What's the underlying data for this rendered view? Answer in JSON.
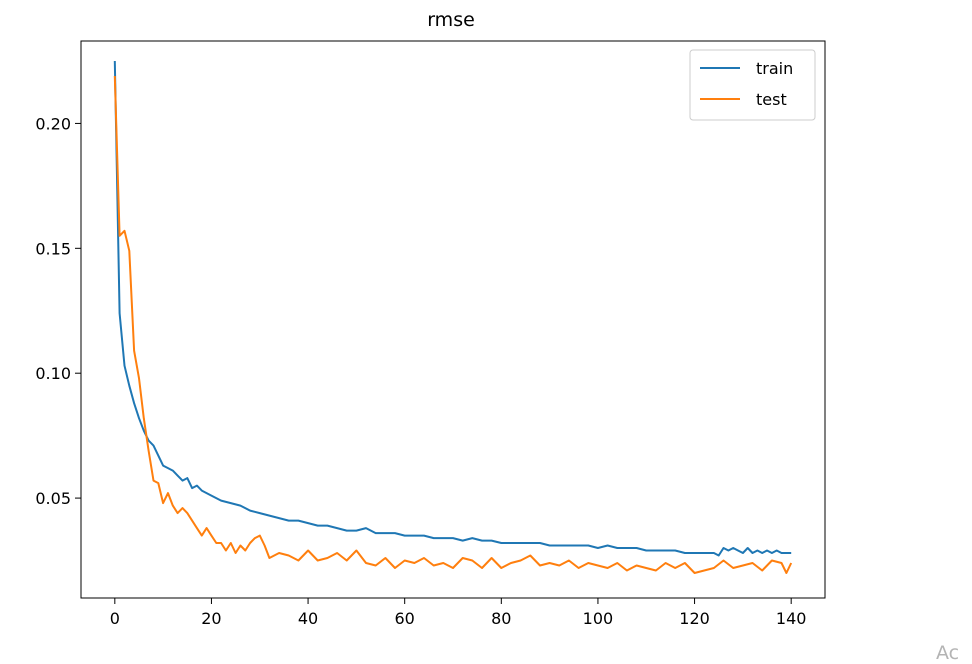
{
  "chart_data": {
    "type": "line",
    "title": "rmse",
    "xlabel": "",
    "ylabel": "",
    "xlim": [
      -7,
      147
    ],
    "ylim": [
      0.01,
      0.233
    ],
    "xticks": [
      0,
      20,
      40,
      60,
      80,
      100,
      120,
      140
    ],
    "yticks": [
      0.05,
      0.1,
      0.15,
      0.2
    ],
    "ytick_labels": [
      "0.05",
      "0.10",
      "0.15",
      "0.20"
    ],
    "legend_position": "top-right",
    "grid": false,
    "series": [
      {
        "name": "train",
        "color": "#1f77b4",
        "x": [
          0,
          1,
          2,
          3,
          4,
          5,
          6,
          7,
          8,
          9,
          10,
          11,
          12,
          13,
          14,
          15,
          16,
          17,
          18,
          19,
          20,
          22,
          24,
          26,
          28,
          30,
          32,
          34,
          36,
          38,
          40,
          42,
          44,
          46,
          48,
          50,
          52,
          54,
          56,
          58,
          60,
          62,
          64,
          66,
          68,
          70,
          72,
          74,
          76,
          78,
          80,
          82,
          84,
          86,
          88,
          90,
          92,
          94,
          96,
          98,
          100,
          102,
          104,
          106,
          108,
          110,
          112,
          114,
          116,
          118,
          120,
          122,
          124,
          125,
          126,
          127,
          128,
          129,
          130,
          131,
          132,
          133,
          134,
          135,
          136,
          137,
          138,
          139,
          140
        ],
        "y": [
          0.225,
          0.124,
          0.103,
          0.095,
          0.088,
          0.082,
          0.077,
          0.073,
          0.071,
          0.067,
          0.063,
          0.062,
          0.061,
          0.059,
          0.057,
          0.058,
          0.054,
          0.055,
          0.053,
          0.052,
          0.051,
          0.049,
          0.048,
          0.047,
          0.045,
          0.044,
          0.043,
          0.042,
          0.041,
          0.041,
          0.04,
          0.039,
          0.039,
          0.038,
          0.037,
          0.037,
          0.038,
          0.036,
          0.036,
          0.036,
          0.035,
          0.035,
          0.035,
          0.034,
          0.034,
          0.034,
          0.033,
          0.034,
          0.033,
          0.033,
          0.032,
          0.032,
          0.032,
          0.032,
          0.032,
          0.031,
          0.031,
          0.031,
          0.031,
          0.031,
          0.03,
          0.031,
          0.03,
          0.03,
          0.03,
          0.029,
          0.029,
          0.029,
          0.029,
          0.028,
          0.028,
          0.028,
          0.028,
          0.027,
          0.03,
          0.029,
          0.03,
          0.029,
          0.028,
          0.03,
          0.028,
          0.029,
          0.028,
          0.029,
          0.028,
          0.029,
          0.028,
          0.028,
          0.028
        ]
      },
      {
        "name": "test",
        "color": "#ff7f0e",
        "x": [
          0,
          1,
          2,
          3,
          4,
          5,
          6,
          7,
          8,
          9,
          10,
          11,
          12,
          13,
          14,
          15,
          16,
          17,
          18,
          19,
          20,
          21,
          22,
          23,
          24,
          25,
          26,
          27,
          28,
          29,
          30,
          31,
          32,
          34,
          36,
          38,
          40,
          42,
          44,
          46,
          48,
          50,
          52,
          54,
          56,
          58,
          60,
          62,
          64,
          66,
          68,
          70,
          72,
          74,
          76,
          78,
          80,
          82,
          84,
          86,
          88,
          90,
          92,
          94,
          96,
          98,
          100,
          102,
          104,
          106,
          108,
          110,
          112,
          114,
          116,
          118,
          120,
          122,
          124,
          126,
          128,
          130,
          132,
          134,
          136,
          138,
          139,
          140
        ],
        "y": [
          0.219,
          0.155,
          0.157,
          0.149,
          0.109,
          0.098,
          0.082,
          0.069,
          0.057,
          0.056,
          0.048,
          0.052,
          0.047,
          0.044,
          0.046,
          0.044,
          0.041,
          0.038,
          0.035,
          0.038,
          0.035,
          0.032,
          0.032,
          0.029,
          0.032,
          0.028,
          0.031,
          0.029,
          0.032,
          0.034,
          0.035,
          0.031,
          0.026,
          0.028,
          0.027,
          0.025,
          0.029,
          0.025,
          0.026,
          0.028,
          0.025,
          0.029,
          0.024,
          0.023,
          0.026,
          0.022,
          0.025,
          0.024,
          0.026,
          0.023,
          0.024,
          0.022,
          0.026,
          0.025,
          0.022,
          0.026,
          0.022,
          0.024,
          0.025,
          0.027,
          0.023,
          0.024,
          0.023,
          0.025,
          0.022,
          0.024,
          0.023,
          0.022,
          0.024,
          0.021,
          0.023,
          0.022,
          0.021,
          0.024,
          0.022,
          0.024,
          0.02,
          0.021,
          0.022,
          0.025,
          0.022,
          0.023,
          0.024,
          0.021,
          0.025,
          0.024,
          0.02,
          0.024
        ]
      }
    ]
  },
  "watermark": "Ac"
}
